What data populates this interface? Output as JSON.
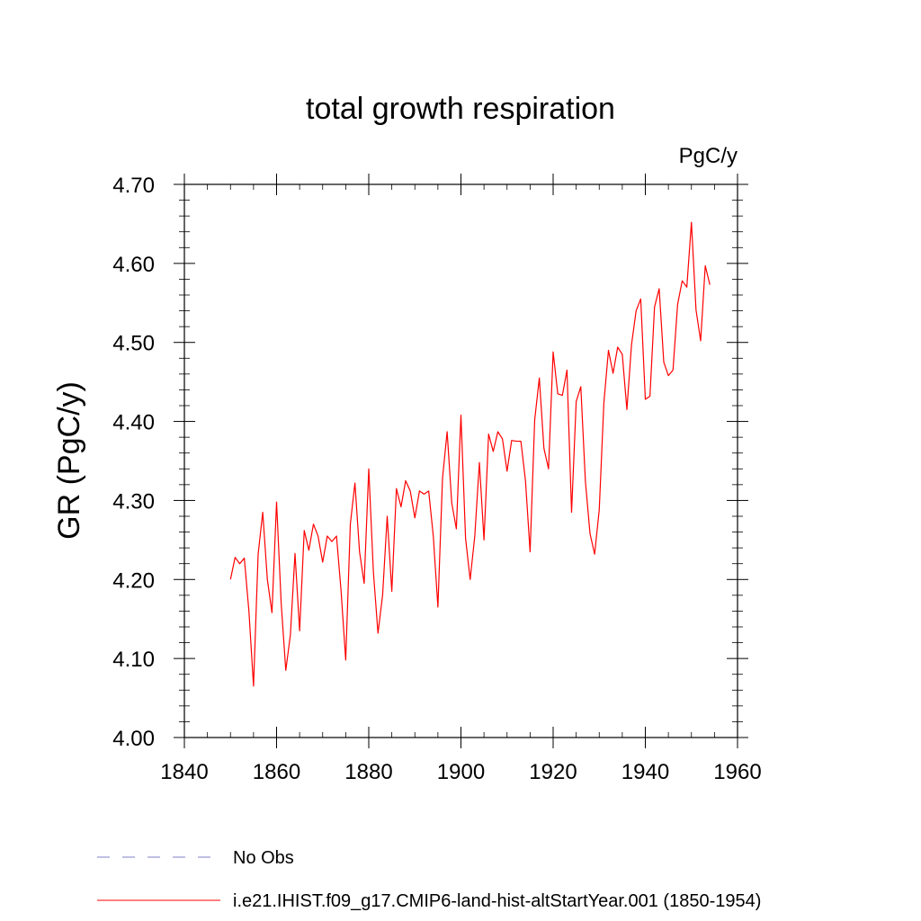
{
  "chart_data": {
    "type": "line",
    "title": "total growth respiration",
    "units_label": "PgC/y",
    "xlabel": "",
    "ylabel": "GR  (PgC/y)",
    "xlim": [
      1840,
      1960
    ],
    "ylim": [
      4.0,
      4.7
    ],
    "x_ticks": [
      1840,
      1860,
      1880,
      1900,
      1920,
      1940,
      1960
    ],
    "x_tick_labels": [
      "1840",
      "1860",
      "1880",
      "1900",
      "1920",
      "1940",
      "1960"
    ],
    "y_ticks": [
      4.0,
      4.1,
      4.2,
      4.3,
      4.4,
      4.5,
      4.6,
      4.7
    ],
    "y_tick_labels": [
      "4.00",
      "4.10",
      "4.20",
      "4.30",
      "4.40",
      "4.50",
      "4.60",
      "4.70"
    ],
    "grid": false,
    "legend_position": "bottom-left",
    "series": [
      {
        "name": "No Obs",
        "color": "#8080c8",
        "style": "dashed",
        "x": [],
        "y": []
      },
      {
        "name": "i.e21.IHIST.f09_g17.CMIP6-land-hist-altStartYear.001 (1850-1954)",
        "color": "#ff0000",
        "style": "solid",
        "x": [
          1850,
          1851,
          1852,
          1853,
          1854,
          1855,
          1856,
          1857,
          1858,
          1859,
          1860,
          1861,
          1862,
          1863,
          1864,
          1865,
          1866,
          1867,
          1868,
          1869,
          1870,
          1871,
          1872,
          1873,
          1874,
          1875,
          1876,
          1877,
          1878,
          1879,
          1880,
          1881,
          1882,
          1883,
          1884,
          1885,
          1886,
          1887,
          1888,
          1889,
          1890,
          1891,
          1892,
          1893,
          1894,
          1895,
          1896,
          1897,
          1898,
          1899,
          1900,
          1901,
          1902,
          1903,
          1904,
          1905,
          1906,
          1907,
          1908,
          1909,
          1910,
          1911,
          1912,
          1913,
          1914,
          1915,
          1916,
          1917,
          1918,
          1919,
          1920,
          1921,
          1922,
          1923,
          1924,
          1925,
          1926,
          1927,
          1928,
          1929,
          1930,
          1931,
          1932,
          1933,
          1934,
          1935,
          1936,
          1937,
          1938,
          1939,
          1940,
          1941,
          1942,
          1943,
          1944,
          1945,
          1946,
          1947,
          1948,
          1949,
          1950,
          1951,
          1952,
          1953,
          1954
        ],
        "y": [
          4.2,
          4.228,
          4.22,
          4.227,
          4.16,
          4.065,
          4.232,
          4.285,
          4.2,
          4.158,
          4.298,
          4.17,
          4.085,
          4.13,
          4.233,
          4.135,
          4.262,
          4.237,
          4.27,
          4.255,
          4.222,
          4.255,
          4.248,
          4.255,
          4.185,
          4.098,
          4.27,
          4.322,
          4.235,
          4.195,
          4.34,
          4.21,
          4.132,
          4.18,
          4.28,
          4.185,
          4.315,
          4.292,
          4.325,
          4.312,
          4.278,
          4.312,
          4.308,
          4.312,
          4.255,
          4.165,
          4.328,
          4.387,
          4.297,
          4.264,
          4.408,
          4.252,
          4.2,
          4.255,
          4.348,
          4.25,
          4.384,
          4.362,
          4.387,
          4.378,
          4.337,
          4.376,
          4.375,
          4.375,
          4.325,
          4.235,
          4.402,
          4.455,
          4.366,
          4.34,
          4.488,
          4.435,
          4.433,
          4.465,
          4.285,
          4.425,
          4.444,
          4.324,
          4.258,
          4.232,
          4.288,
          4.423,
          4.49,
          4.461,
          4.494,
          4.485,
          4.415,
          4.497,
          4.54,
          4.555,
          4.428,
          4.432,
          4.545,
          4.568,
          4.475,
          4.458,
          4.465,
          4.548,
          4.578,
          4.57,
          4.652,
          4.541,
          4.502,
          4.597,
          4.573
        ]
      }
    ]
  }
}
